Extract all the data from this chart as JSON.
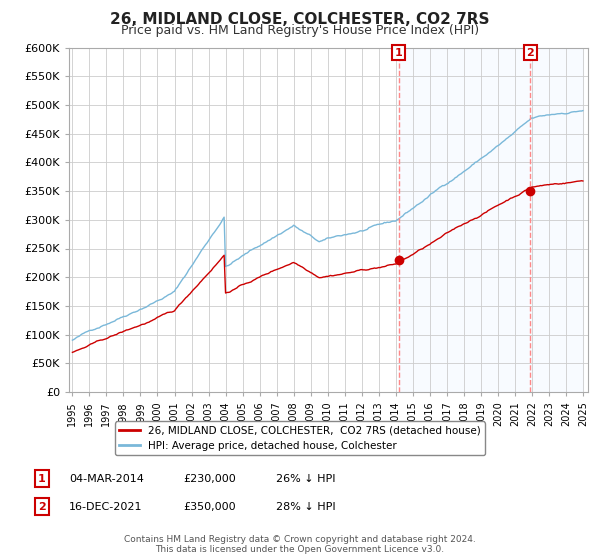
{
  "title": "26, MIDLAND CLOSE, COLCHESTER, CO2 7RS",
  "subtitle": "Price paid vs. HM Land Registry's House Price Index (HPI)",
  "title_fontsize": 11,
  "subtitle_fontsize": 9,
  "ylim": [
    0,
    600000
  ],
  "yticks": [
    0,
    50000,
    100000,
    150000,
    200000,
    250000,
    300000,
    350000,
    400000,
    450000,
    500000,
    550000,
    600000
  ],
  "ytick_labels": [
    "£0",
    "£50K",
    "£100K",
    "£150K",
    "£200K",
    "£250K",
    "£300K",
    "£350K",
    "£400K",
    "£450K",
    "£500K",
    "£550K",
    "£600K"
  ],
  "hpi_color": "#7ab8d9",
  "price_color": "#cc0000",
  "hpi_fill_color": "#ddeeff",
  "vline_color": "#ff8888",
  "legend_price_label": "26, MIDLAND CLOSE, COLCHESTER,  CO2 7RS (detached house)",
  "legend_hpi_label": "HPI: Average price, detached house, Colchester",
  "note1_label": "1",
  "note1_date": "04-MAR-2014",
  "note1_price": "£230,000",
  "note1_pct": "26% ↓ HPI",
  "note2_label": "2",
  "note2_date": "16-DEC-2021",
  "note2_price": "£350,000",
  "note2_pct": "28% ↓ HPI",
  "footer": "Contains HM Land Registry data © Crown copyright and database right 2024.\nThis data is licensed under the Open Government Licence v3.0.",
  "background_color": "#ffffff",
  "grid_color": "#cccccc"
}
